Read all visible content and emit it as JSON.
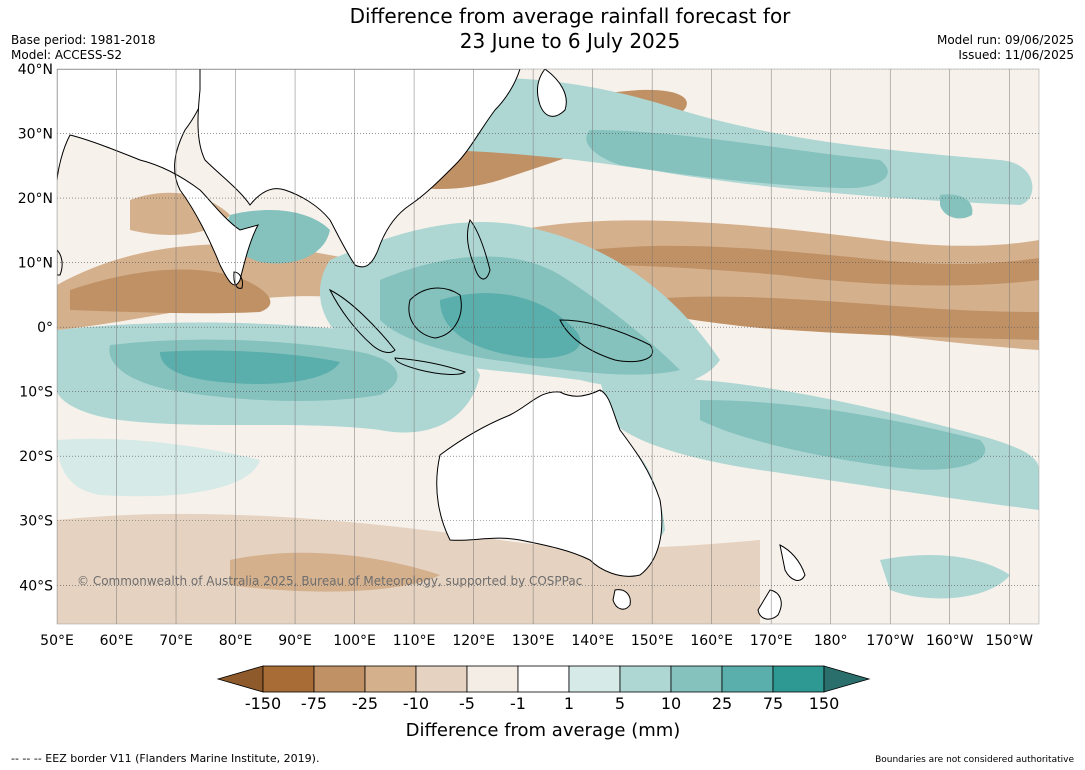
{
  "header": {
    "title_line1": "Difference from average rainfall forecast for",
    "title_line2": "23 June to 6 July 2025",
    "base_period": "Base period: 1981-2018",
    "model": "Model: ACCESS-S2",
    "model_run": "Model run: 09/06/2025",
    "issued": "Issued: 11/06/2025"
  },
  "map": {
    "extent": {
      "lon_west": 50,
      "lon_east": 215,
      "lat_north": 40,
      "lat_south": -46
    },
    "lat_labels": [
      {
        "lat": 40,
        "text": "40°N"
      },
      {
        "lat": 30,
        "text": "30°N"
      },
      {
        "lat": 20,
        "text": "20°N"
      },
      {
        "lat": 10,
        "text": "10°N"
      },
      {
        "lat": 0,
        "text": "0°"
      },
      {
        "lat": -10,
        "text": "10°S"
      },
      {
        "lat": -20,
        "text": "20°S"
      },
      {
        "lat": -30,
        "text": "30°S"
      },
      {
        "lat": -40,
        "text": "40°S"
      }
    ],
    "lon_labels": [
      {
        "lon": 50,
        "text": "50°E"
      },
      {
        "lon": 60,
        "text": "60°E"
      },
      {
        "lon": 70,
        "text": "70°E"
      },
      {
        "lon": 80,
        "text": "80°E"
      },
      {
        "lon": 90,
        "text": "90°E"
      },
      {
        "lon": 100,
        "text": "100°E"
      },
      {
        "lon": 110,
        "text": "110°E"
      },
      {
        "lon": 120,
        "text": "120°E"
      },
      {
        "lon": 130,
        "text": "130°E"
      },
      {
        "lon": 140,
        "text": "140°E"
      },
      {
        "lon": 150,
        "text": "150°E"
      },
      {
        "lon": 160,
        "text": "160°E"
      },
      {
        "lon": 170,
        "text": "170°E"
      },
      {
        "lon": 180,
        "text": "180°"
      },
      {
        "lon": 190,
        "text": "170°W"
      },
      {
        "lon": 200,
        "text": "160°W"
      },
      {
        "lon": 210,
        "text": "150°W"
      }
    ],
    "copyright": "© Commonwealth of Australia 2025, Bureau of Meteorology, supported by COSPPac",
    "gridlines": true
  },
  "colorbar": {
    "title": "Difference from average (mm)",
    "ticks": [
      "-150",
      "-75",
      "-25",
      "-10",
      "-5",
      "-1",
      "1",
      "5",
      "10",
      "25",
      "75",
      "150"
    ],
    "colors": [
      "#8f5a2b",
      "#a86d37",
      "#c09165",
      "#d4b08d",
      "#e5d2c0",
      "#f3ede6",
      "#ffffff",
      "#d6eae8",
      "#aed7d4",
      "#85c1bd",
      "#5aaeab",
      "#2e9892",
      "#2b6f6c"
    ]
  },
  "footer": {
    "eez_note": "--  --  -- EEZ border V11 (Flanders Marine Institute, 2019).",
    "boundaries_note": "Boundaries are not considered authoritative"
  }
}
